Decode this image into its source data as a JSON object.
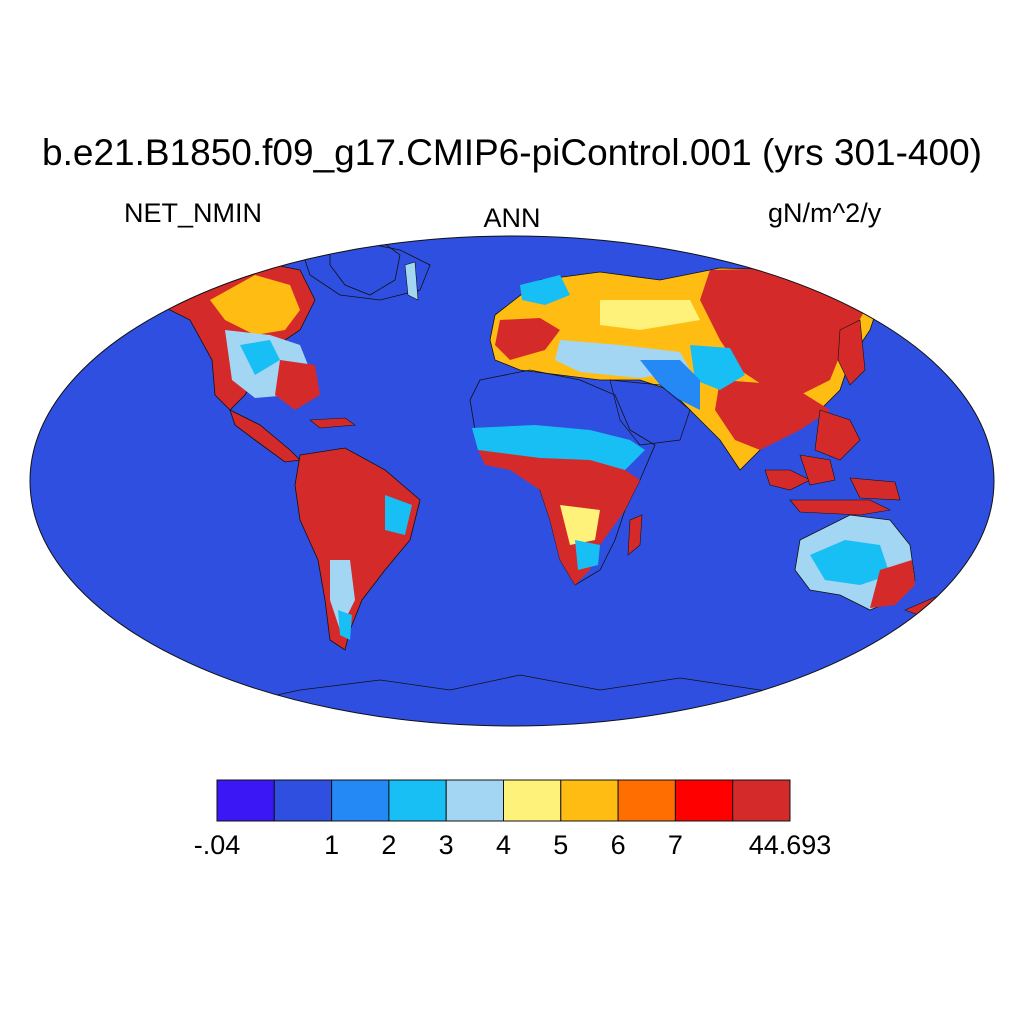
{
  "title": "b.e21.B1850.f09_g17.CMIP6-piControl.001 (yrs 301-400)",
  "left_label": "NET_NMIN",
  "center_label": "ANN",
  "right_label": "gN/m^2/y",
  "colors": {
    "ocean": "#2f4fe0",
    "coast": "#111111"
  },
  "colorbar": {
    "colors": [
      "#3b17f5",
      "#2f4fe0",
      "#2489f5",
      "#17bff5",
      "#a2d6f2",
      "#fff27a",
      "#ffbd14",
      "#ff6e00",
      "#ff0000",
      "#d42a2a"
    ],
    "labels": [
      {
        "text": "-.04",
        "boundary": 0
      },
      {
        "text": "1",
        "boundary": 2
      },
      {
        "text": "2",
        "boundary": 3
      },
      {
        "text": "3",
        "boundary": 4
      },
      {
        "text": "4",
        "boundary": 5
      },
      {
        "text": "5",
        "boundary": 6
      },
      {
        "text": "6",
        "boundary": 7
      },
      {
        "text": "7",
        "boundary": 8
      },
      {
        "text": "44.693",
        "boundary": 10
      }
    ]
  }
}
